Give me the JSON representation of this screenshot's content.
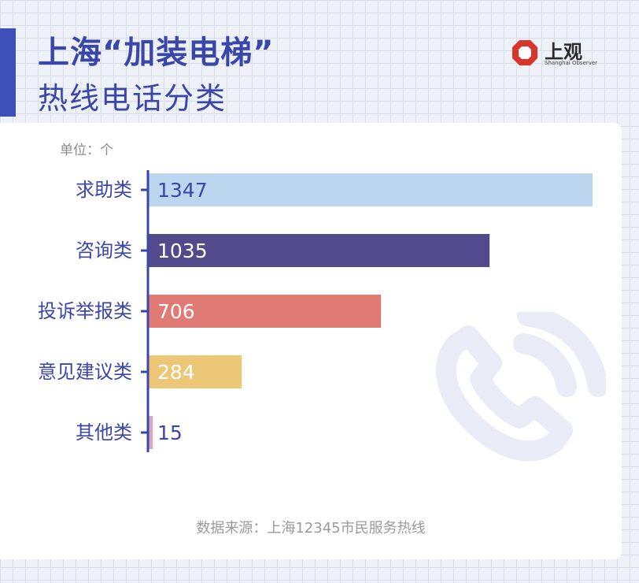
{
  "header": {
    "title": "上海“加装电梯”",
    "subtitle": "热线电话分类"
  },
  "logo": {
    "name_cn": "上观",
    "name_en": "Shanghai Observer",
    "icon": "shanghai-observer-logo-icon"
  },
  "chart_data": {
    "type": "bar",
    "orientation": "horizontal",
    "unit_label": "单位：个",
    "categories": [
      "求助类",
      "咨询类",
      "投诉举报类",
      "意见建议类",
      "其他类"
    ],
    "values": [
      1347,
      1035,
      706,
      284,
      15
    ],
    "colors": [
      "#bcd6ef",
      "#514a8c",
      "#e07a74",
      "#ecc776",
      "#dca8be"
    ],
    "value_label_colors": [
      "#3a46a8",
      "#ffffff",
      "#ffffff",
      "#ffffff",
      "#3a46a8"
    ],
    "xlim": [
      0,
      1347
    ],
    "grid": false,
    "legend": "none"
  },
  "footer": {
    "source": "数据来源：上海12345市民服务热线"
  },
  "decoration": {
    "icon": "phone-icon"
  }
}
